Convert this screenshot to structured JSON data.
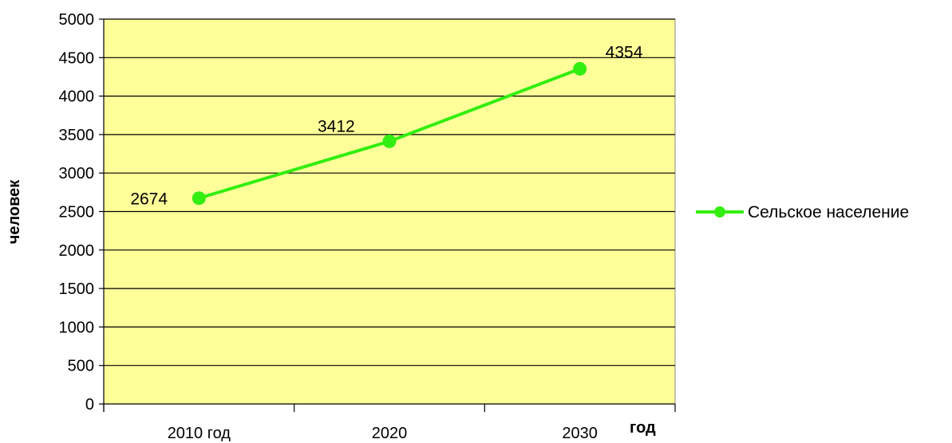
{
  "chart_data": {
    "type": "line",
    "categories": [
      "2010 год",
      "2020",
      "2030"
    ],
    "series": [
      {
        "name": "Сельское население",
        "values": [
          2674,
          3412,
          4354
        ],
        "color": "#33ee11"
      }
    ],
    "data_labels": [
      "2674",
      "3412",
      "4354"
    ],
    "xlabel": "год",
    "ylabel": "человек",
    "ylim": [
      0,
      5000
    ],
    "yticks": [
      0,
      500,
      1000,
      1500,
      2000,
      2500,
      3000,
      3500,
      4000,
      4500,
      5000
    ],
    "ytick_labels": [
      "0",
      "500",
      "1000",
      "1500",
      "2000",
      "2500",
      "3000",
      "3500",
      "4000",
      "4500",
      "5000"
    ],
    "grid": true,
    "legend_position": "right",
    "plot_background": "#ffff99"
  }
}
